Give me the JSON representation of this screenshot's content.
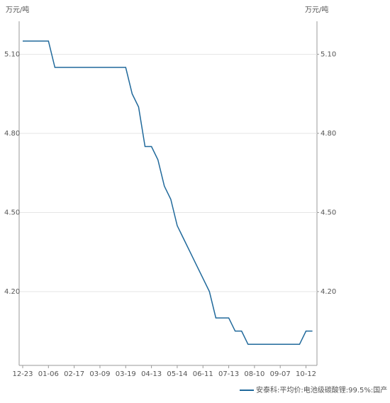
{
  "chart_data": {
    "type": "line",
    "ylabel": "万元/吨",
    "y2label": "万元/吨",
    "categories": [
      "12-23",
      null,
      null,
      null,
      "01-06",
      null,
      null,
      null,
      "02-17",
      null,
      null,
      null,
      "03-09",
      null,
      null,
      null,
      "03-19",
      null,
      null,
      null,
      "04-13",
      null,
      null,
      null,
      "05-14",
      null,
      null,
      null,
      "06-11",
      null,
      null,
      null,
      "07-13",
      null,
      null,
      null,
      "08-10",
      null,
      null,
      null,
      "09-07",
      null,
      null,
      null,
      "10-12",
      null
    ],
    "series": [
      {
        "name": "安泰科:平均价:电池级碳酸锂:99.5%:国产",
        "color": "#20699b",
        "values": [
          5.15,
          5.15,
          5.15,
          5.15,
          5.15,
          5.05,
          5.05,
          5.05,
          5.05,
          5.05,
          5.05,
          5.05,
          5.05,
          5.05,
          5.05,
          5.05,
          5.05,
          4.95,
          4.9,
          4.75,
          4.75,
          4.7,
          4.6,
          4.55,
          4.45,
          4.4,
          4.35,
          4.3,
          4.25,
          4.2,
          4.1,
          4.1,
          4.1,
          4.05,
          4.05,
          4.0,
          4.0,
          4.0,
          4.0,
          4.0,
          4.0,
          4.0,
          4.0,
          4.0,
          4.05,
          4.05
        ]
      }
    ],
    "ylim": [
      3.92,
      5.225
    ],
    "yticks": [
      {
        "value": 4.2,
        "label": "4.20"
      },
      {
        "value": 4.5,
        "label": "4.50"
      },
      {
        "value": 4.8,
        "label": "4.80"
      },
      {
        "value": 5.1,
        "label": "5.10"
      }
    ],
    "y2lim": [
      3.92,
      5.225
    ],
    "y2ticks": [
      {
        "value": 4.2,
        "label": "4.20"
      },
      {
        "value": 4.5,
        "label": "4.50"
      },
      {
        "value": 4.8,
        "label": "4.80"
      },
      {
        "value": 5.1,
        "label": "5.10"
      }
    ],
    "grid": true
  }
}
